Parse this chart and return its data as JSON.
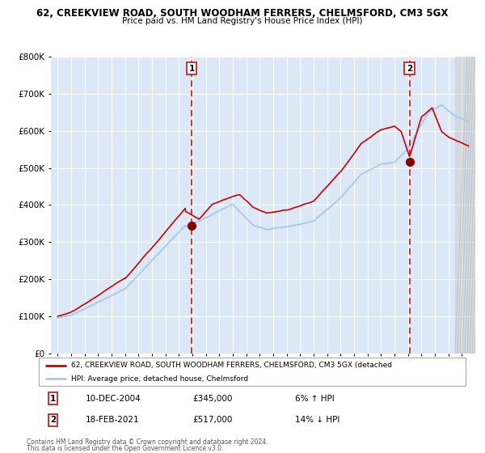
{
  "title": "62, CREEKVIEW ROAD, SOUTH WOODHAM FERRERS, CHELMSFORD, CM3 5GX",
  "subtitle": "Price paid vs. HM Land Registry's House Price Index (HPI)",
  "legend_line1": "62, CREEKVIEW ROAD, SOUTH WOODHAM FERRERS, CHELMSFORD, CM3 5GX (detached",
  "legend_line2": "HPI: Average price, detached house, Chelmsford",
  "footer1": "Contains HM Land Registry data © Crown copyright and database right 2024.",
  "footer2": "This data is licensed under the Open Government Licence v3.0.",
  "annotation1_date": "10-DEC-2004",
  "annotation1_price": "£345,000",
  "annotation1_hpi": "6% ↑ HPI",
  "annotation2_date": "18-FEB-2021",
  "annotation2_price": "£517,000",
  "annotation2_hpi": "14% ↓ HPI",
  "sale1_x": 2004.95,
  "sale1_y": 345000,
  "sale2_x": 2021.12,
  "sale2_y": 517000,
  "hpi_line_color": "#a8c8e8",
  "price_line_color": "#cc0000",
  "sale_dot_color": "#8b0000",
  "plot_bg_color": "#dce8f5",
  "fig_bg_color": "#ffffff",
  "grid_color": "#ffffff",
  "vline_color": "#cc0000",
  "box_edge_color": "#cc3333",
  "ylim": [
    0,
    800000
  ],
  "yticks": [
    0,
    100000,
    200000,
    300000,
    400000,
    500000,
    600000,
    700000,
    800000
  ],
  "xlim_left": 1994.5,
  "xlim_right": 2026.0
}
